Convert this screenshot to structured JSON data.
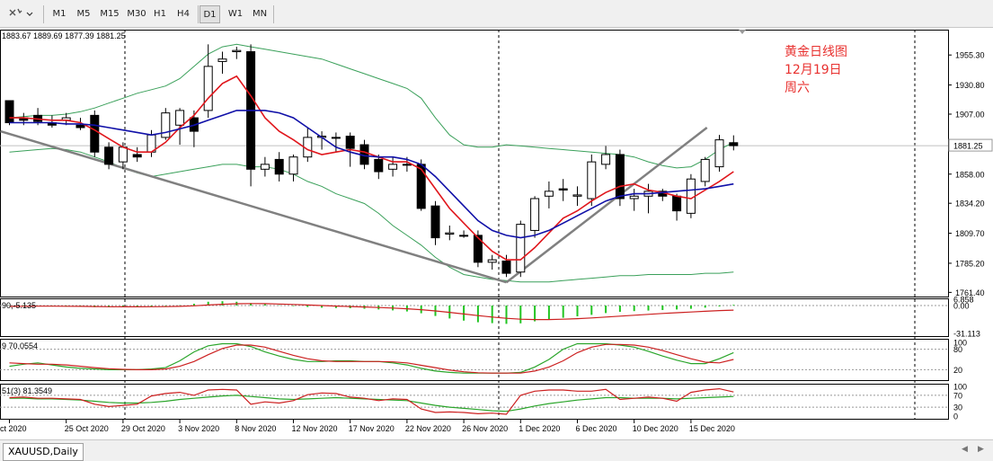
{
  "toolbar": {
    "timeframes": [
      "M1",
      "M5",
      "M15",
      "M30",
      "H1",
      "H4",
      "D1",
      "W1",
      "MN"
    ],
    "active": "D1",
    "icon": "crosshair-cursor-icon"
  },
  "tab": {
    "label": "XAUUSD,Daily"
  },
  "annotation": {
    "line1": "黄金日线图",
    "line2": "12月19日",
    "line3": "周六",
    "color": "#e8312f"
  },
  "ohlc_text": "1883.67 1889.69 1877.39 1881.25",
  "indicators": {
    "macd_label": "90,-5.135",
    "stoch_label": "9 70.0554",
    "rsi_label": "51(3) 81.3549"
  },
  "colors": {
    "up": "#ffffff",
    "down": "#000000",
    "fast_ma": "#e0161c",
    "slow_ma": "#1010a8",
    "bands": "#3aa05a",
    "trendline": "#808080",
    "macd_hist": "#22c422",
    "signal": "#cc2020",
    "grid": "#888888"
  },
  "chart_data": [
    {
      "type": "candlestick",
      "ohlc": [
        [
          1918,
          1918,
          1898,
          1900
        ],
        [
          1904,
          1908,
          1898,
          1902
        ],
        [
          1906,
          1912,
          1898,
          1901
        ],
        [
          1900,
          1906,
          1896,
          1898
        ],
        [
          1902,
          1908,
          1898,
          1904
        ],
        [
          1898,
          1904,
          1894,
          1896
        ],
        [
          1906,
          1910,
          1872,
          1876
        ],
        [
          1880,
          1884,
          1862,
          1866
        ],
        [
          1868,
          1884,
          1862,
          1880
        ],
        [
          1874,
          1880,
          1868,
          1872
        ],
        [
          1876,
          1894,
          1872,
          1890
        ],
        [
          1888,
          1912,
          1886,
          1908
        ],
        [
          1898,
          1912,
          1882,
          1910
        ],
        [
          1904,
          1910,
          1880,
          1893
        ],
        [
          1910,
          1964,
          1904,
          1946
        ],
        [
          1950,
          1958,
          1940,
          1952
        ],
        [
          1958,
          1962,
          1952,
          1959
        ],
        [
          1958,
          1964,
          1848,
          1862
        ],
        [
          1862,
          1872,
          1856,
          1866
        ],
        [
          1870,
          1876,
          1852,
          1858
        ],
        [
          1858,
          1874,
          1852,
          1872
        ],
        [
          1872,
          1896,
          1868,
          1888
        ],
        [
          1888,
          1893,
          1878,
          1889
        ],
        [
          1888,
          1892,
          1876,
          1888
        ],
        [
          1889,
          1892,
          1864,
          1879
        ],
        [
          1882,
          1886,
          1862,
          1866
        ],
        [
          1870,
          1874,
          1854,
          1860
        ],
        [
          1862,
          1872,
          1856,
          1866
        ],
        [
          1866,
          1872,
          1860,
          1866
        ],
        [
          1866,
          1870,
          1828,
          1830
        ],
        [
          1832,
          1836,
          1800,
          1806
        ],
        [
          1809,
          1816,
          1804,
          1810
        ],
        [
          1808,
          1812,
          1806,
          1808
        ],
        [
          1808,
          1812,
          1782,
          1786
        ],
        [
          1786,
          1792,
          1780,
          1788
        ],
        [
          1787,
          1792,
          1774,
          1777
        ],
        [
          1778,
          1820,
          1774,
          1817
        ],
        [
          1812,
          1840,
          1806,
          1838
        ],
        [
          1840,
          1852,
          1830,
          1844
        ],
        [
          1846,
          1854,
          1836,
          1845
        ],
        [
          1840,
          1848,
          1832,
          1841
        ],
        [
          1838,
          1874,
          1832,
          1868
        ],
        [
          1866,
          1881,
          1862,
          1874
        ],
        [
          1874,
          1878,
          1832,
          1838
        ],
        [
          1838,
          1846,
          1828,
          1840
        ],
        [
          1840,
          1850,
          1826,
          1844
        ],
        [
          1844,
          1846,
          1836,
          1840
        ],
        [
          1840,
          1842,
          1820,
          1828
        ],
        [
          1826,
          1858,
          1822,
          1854
        ],
        [
          1852,
          1872,
          1848,
          1870
        ],
        [
          1864,
          1890,
          1860,
          1886
        ],
        [
          1883.67,
          1889.69,
          1877.39,
          1881.25
        ]
      ],
      "fast_ma": [
        1904,
        1904,
        1903,
        1902,
        1902,
        1900,
        1894,
        1887,
        1880,
        1876,
        1876,
        1884,
        1896,
        1906,
        1920,
        1932,
        1938,
        1922,
        1904,
        1893,
        1886,
        1878,
        1874,
        1876,
        1878,
        1876,
        1872,
        1868,
        1868,
        1862,
        1846,
        1830,
        1818,
        1806,
        1795,
        1788,
        1788,
        1798,
        1810,
        1822,
        1828,
        1836,
        1843,
        1848,
        1850,
        1845,
        1843,
        1840,
        1838,
        1845,
        1852,
        1860
      ],
      "slow_ma": [
        1900,
        1900,
        1900,
        1900,
        1899,
        1899,
        1898,
        1896,
        1894,
        1892,
        1890,
        1892,
        1895,
        1898,
        1902,
        1906,
        1910,
        1910,
        1910,
        1908,
        1904,
        1896,
        1888,
        1880,
        1876,
        1873,
        1872,
        1872,
        1870,
        1866,
        1856,
        1844,
        1832,
        1820,
        1812,
        1808,
        1806,
        1808,
        1812,
        1818,
        1824,
        1830,
        1836,
        1840,
        1842,
        1842,
        1843,
        1844,
        1845,
        1846,
        1848,
        1850
      ],
      "band_upper": [
        1904,
        1905,
        1906,
        1906,
        1907,
        1909,
        1912,
        1916,
        1920,
        1924,
        1927,
        1930,
        1936,
        1946,
        1956,
        1962,
        1964,
        1962,
        1960,
        1958,
        1956,
        1954,
        1952,
        1948,
        1944,
        1940,
        1936,
        1932,
        1928,
        1920,
        1904,
        1890,
        1882,
        1880,
        1880,
        1882,
        1881,
        1880,
        1879,
        1878,
        1877,
        1876,
        1875,
        1874,
        1872,
        1868,
        1865,
        1863,
        1864,
        1870,
        1878,
        1884
      ],
      "band_lower": [
        1876,
        1877,
        1878,
        1879,
        1878,
        1876,
        1872,
        1868,
        1863,
        1859,
        1856,
        1858,
        1860,
        1862,
        1864,
        1866,
        1866,
        1864,
        1864,
        1862,
        1858,
        1852,
        1848,
        1842,
        1838,
        1834,
        1826,
        1816,
        1808,
        1800,
        1790,
        1782,
        1776,
        1774,
        1772,
        1771,
        1770,
        1770,
        1770,
        1771,
        1772,
        1773,
        1774,
        1775,
        1775,
        1776,
        1776,
        1776,
        1776,
        1777,
        1777,
        1778
      ],
      "price_scale": [
        "1955.30",
        "1930.80",
        "1907.00",
        "1858.00",
        "1834.20",
        "1809.70",
        "1785.20",
        "1761.40"
      ],
      "current_price": "1881.25",
      "date_labels": [
        "ct 2020",
        "25 Oct 2020",
        "29 Oct 2020",
        "3 Nov 2020",
        "8 Nov 2020",
        "12 Nov 2020",
        "17 Nov 2020",
        "22 Nov 2020",
        "26 Nov 2020",
        "1 Dec 2020",
        "6 Dec 2020",
        "10 Dec 2020",
        "15 Dec 2020"
      ],
      "date_label_index": [
        0,
        4,
        8,
        12,
        16,
        20,
        24,
        28,
        32,
        36,
        40,
        44,
        48
      ],
      "y_range": [
        1758,
        1976
      ]
    },
    {
      "type": "bar",
      "name": "MACD",
      "values": [
        0.2,
        0.4,
        0.1,
        -0.6,
        -1.0,
        -1.3,
        -1.8,
        -2.0,
        -1.8,
        -1.4,
        -1.0,
        -0.6,
        0.3,
        2.0,
        4.2,
        4.8,
        4.2,
        2.8,
        1.4,
        0.4,
        -0.6,
        -1.6,
        -2.4,
        -2.8,
        -3.0,
        -3.6,
        -4.4,
        -5.4,
        -6.6,
        -8.6,
        -11.6,
        -14.4,
        -16.8,
        -18.6,
        -19.6,
        -20.4,
        -19.8,
        -17.6,
        -15.6,
        -13.6,
        -12.0,
        -10.4,
        -8.4,
        -7.0,
        -6.2,
        -5.6,
        -5.0,
        -4.4,
        -3.6,
        -2.4,
        -1.0,
        0.8
      ],
      "signal": [
        -1.0,
        -0.8,
        -0.7,
        -0.7,
        -0.8,
        -0.9,
        -1.1,
        -1.3,
        -1.4,
        -1.4,
        -1.3,
        -1.2,
        -0.9,
        -0.3,
        0.6,
        1.4,
        2.0,
        2.2,
        2.1,
        1.7,
        1.2,
        0.6,
        0.0,
        -0.6,
        -1.1,
        -1.6,
        -2.2,
        -2.8,
        -3.6,
        -4.6,
        -6.0,
        -7.6,
        -9.4,
        -11.2,
        -12.8,
        -14.2,
        -15.2,
        -15.6,
        -15.6,
        -15.2,
        -14.6,
        -13.8,
        -12.8,
        -11.8,
        -10.8,
        -9.8,
        -8.8,
        -8.0,
        -7.2,
        -6.4,
        -5.6,
        -5.135
      ],
      "scale": [
        "6.858",
        "0.00",
        "-31.113"
      ],
      "y_range": [
        -34,
        8
      ]
    },
    {
      "type": "line",
      "name": "Stochastic",
      "main": [
        30,
        36,
        40,
        34,
        28,
        24,
        22,
        20,
        20,
        20,
        22,
        26,
        46,
        72,
        90,
        96,
        96,
        88,
        72,
        60,
        50,
        44,
        44,
        46,
        46,
        44,
        44,
        40,
        34,
        24,
        16,
        12,
        10,
        10,
        10,
        10,
        12,
        28,
        50,
        80,
        96,
        96,
        96,
        92,
        86,
        74,
        60,
        48,
        38,
        38,
        52,
        70.0554
      ],
      "signal": [
        40,
        38,
        36,
        36,
        34,
        30,
        26,
        23,
        21,
        20,
        20,
        22,
        30,
        44,
        64,
        82,
        92,
        92,
        86,
        74,
        62,
        52,
        46,
        44,
        44,
        44,
        44,
        43,
        40,
        33,
        26,
        19,
        14,
        11,
        10,
        10,
        10,
        16,
        28,
        46,
        70,
        86,
        94,
        94,
        92,
        86,
        76,
        64,
        52,
        42,
        40,
        50
      ],
      "scale": [
        "100",
        "80",
        "20"
      ],
      "y_range": [
        0,
        100
      ]
    },
    {
      "type": "line",
      "name": "RSI",
      "main": [
        62,
        64,
        60,
        60,
        58,
        56,
        40,
        32,
        36,
        40,
        68,
        76,
        80,
        70,
        88,
        90,
        88,
        40,
        48,
        44,
        52,
        72,
        78,
        76,
        64,
        60,
        52,
        58,
        56,
        24,
        12,
        14,
        12,
        8,
        10,
        6,
        70,
        84,
        88,
        88,
        84,
        84,
        90,
        56,
        60,
        64,
        60,
        50,
        80,
        88,
        92,
        81.3549
      ],
      "signal": [
        60,
        60,
        58,
        58,
        56,
        54,
        50,
        46,
        44,
        44,
        46,
        50,
        56,
        60,
        64,
        68,
        70,
        66,
        62,
        58,
        56,
        58,
        60,
        62,
        60,
        58,
        56,
        54,
        52,
        44,
        36,
        30,
        26,
        22,
        18,
        16,
        24,
        34,
        42,
        48,
        54,
        58,
        62,
        62,
        60,
        60,
        60,
        58,
        60,
        62,
        64,
        66
      ],
      "scale": [
        "100",
        "70",
        "30",
        "0"
      ],
      "y_range": [
        0,
        100
      ]
    }
  ]
}
